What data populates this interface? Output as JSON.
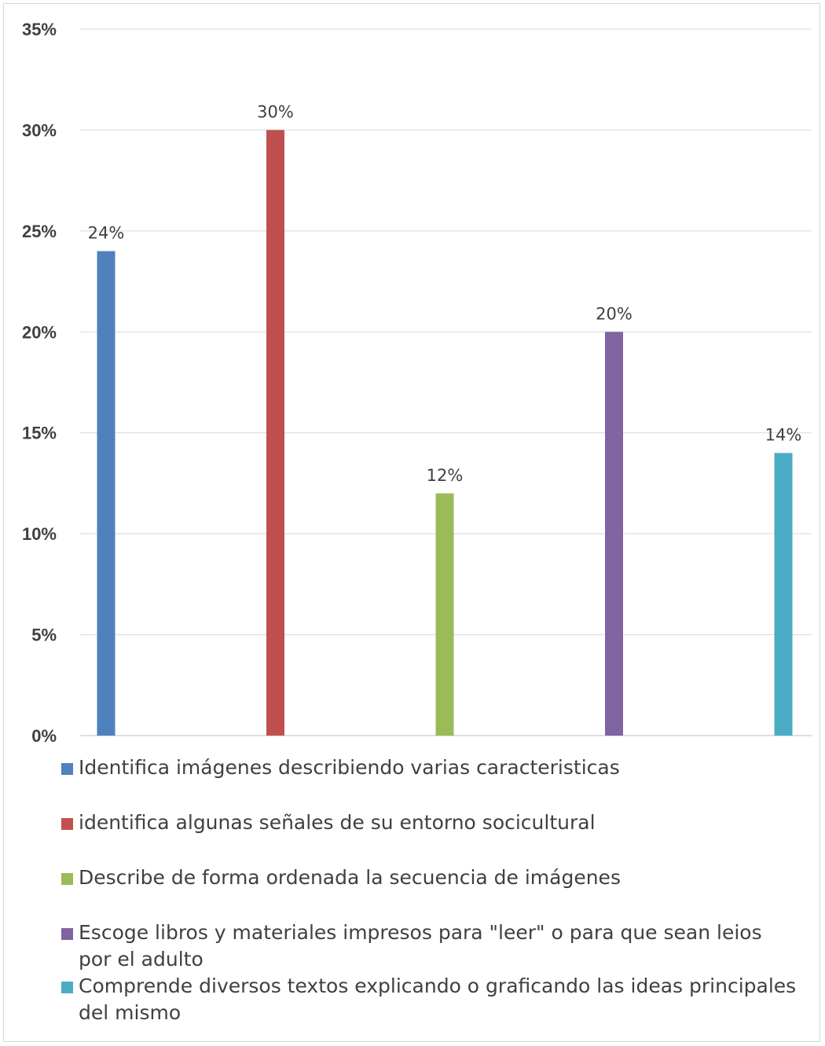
{
  "chart_data": {
    "type": "bar",
    "categories": [
      "Identifica imágenes describiendo varias caracteristicas",
      "identifica algunas señales de su entorno socicultural",
      "Describe de forma ordenada la secuencia de imágenes",
      "Escoge libros y materiales impresos para \"leer\" o para que sean leios por el adulto",
      "Comprende diversos textos explicando o graficando las ideas principales del mismo"
    ],
    "values": [
      24,
      30,
      12,
      20,
      14
    ],
    "data_labels": [
      "24%",
      "30%",
      "12%",
      "20%",
      "14%"
    ],
    "colors": [
      "#4f81bd",
      "#c0504d",
      "#9bbb59",
      "#8064a2",
      "#4bacc6"
    ],
    "ylim": [
      0,
      35
    ],
    "yticks": [
      0,
      5,
      10,
      15,
      20,
      25,
      30,
      35
    ],
    "ytick_labels": [
      "0%",
      "5%",
      "10%",
      "15%",
      "20%",
      "25%",
      "30%",
      "35%"
    ],
    "grid": true,
    "legend_position": "bottom",
    "title": "",
    "xlabel": "",
    "ylabel": ""
  }
}
